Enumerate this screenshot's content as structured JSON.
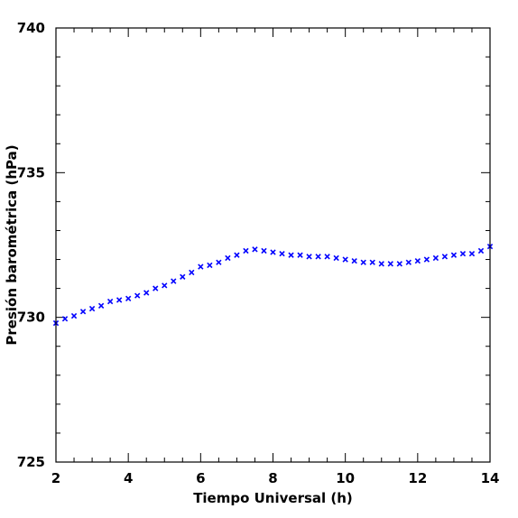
{
  "chart_data": {
    "type": "scatter",
    "title": "",
    "xlabel": "Tiempo Universal (h)",
    "ylabel": "Presión barométrica (hPa)",
    "xlim": [
      2,
      14
    ],
    "ylim": [
      725,
      740
    ],
    "x_ticks": [
      2,
      4,
      6,
      8,
      10,
      12,
      14
    ],
    "x_tick_labels": [
      "2",
      "4",
      "6",
      "8",
      "10",
      "12",
      "14"
    ],
    "y_ticks": [
      725,
      730,
      735,
      740
    ],
    "y_tick_labels": [
      "725",
      "730",
      "735",
      "740"
    ],
    "marker": "x",
    "marker_color": "#0000ff",
    "grid": false,
    "series": [
      {
        "x": [
          2.0,
          2.25,
          2.5,
          2.75,
          3.0,
          3.25,
          3.5,
          3.75,
          4.0,
          4.25,
          4.5,
          4.75,
          5.0,
          5.25,
          5.5,
          5.75,
          6.0,
          6.25,
          6.5,
          6.75,
          7.0,
          7.25,
          7.5,
          7.75,
          8.0,
          8.25,
          8.5,
          8.75,
          9.0,
          9.25,
          9.5,
          9.75,
          10.0,
          10.25,
          10.5,
          10.75,
          11.0,
          11.25,
          11.5,
          11.75,
          12.0,
          12.25,
          12.5,
          12.75,
          13.0,
          13.25,
          13.5,
          13.75,
          14.0
        ],
        "y": [
          729.8,
          729.95,
          730.05,
          730.2,
          730.3,
          730.4,
          730.55,
          730.6,
          730.65,
          730.75,
          730.85,
          731.0,
          731.1,
          731.25,
          731.4,
          731.55,
          731.75,
          731.8,
          731.9,
          732.05,
          732.15,
          732.3,
          732.35,
          732.3,
          732.25,
          732.2,
          732.15,
          732.15,
          732.1,
          732.1,
          732.1,
          732.05,
          732.0,
          731.95,
          731.9,
          731.9,
          731.85,
          731.85,
          731.85,
          731.9,
          731.95,
          732.0,
          732.05,
          732.1,
          732.15,
          732.2,
          732.2,
          732.3,
          732.45
        ]
      }
    ]
  }
}
